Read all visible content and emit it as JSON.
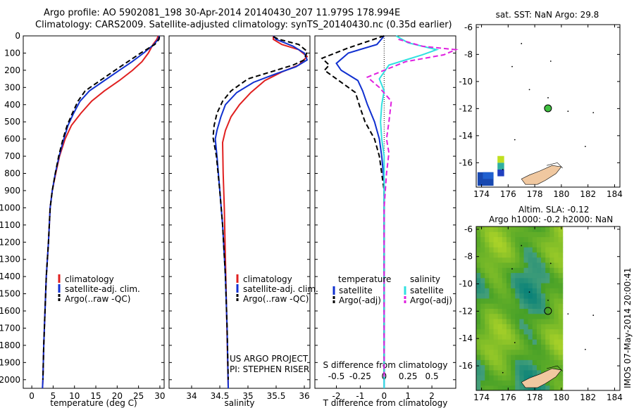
{
  "header": {
    "line1": "Argo profile: AO 5902081_198 30-Apr-2014 20140430_207 11.979S 178.994E",
    "line2": "Climatology: CARS2009. Satellite-adjusted climatology: synTS_20140430.nc (0.35d earlier)"
  },
  "footer_vertical": "IMOS 07-May-2014 20:00:41",
  "colors": {
    "climatology": "#e02020",
    "satellite": "#1030d0",
    "argo": "#000000",
    "sal_satellite": "#30e0e0",
    "sal_argo": "#e020e0",
    "map_land": "#f0c8a0",
    "map_ocean_anom": "#40c040"
  },
  "chart_data": [
    {
      "type": "line",
      "xlabel": "temperature (deg C)",
      "ylabel": "",
      "xticks": [
        0,
        5,
        10,
        15,
        20,
        25,
        30
      ],
      "xlim": [
        -2,
        31
      ],
      "yticks": [
        0,
        100,
        200,
        300,
        400,
        500,
        600,
        700,
        800,
        900,
        1000,
        1100,
        1200,
        1300,
        1400,
        1500,
        1600,
        1700,
        1800,
        1900,
        2000
      ],
      "ylim": [
        2050,
        0
      ],
      "legend": [
        "climatology",
        "satellite-adj. clim.",
        "Argo(..raw -QC)"
      ],
      "series": [
        {
          "name": "climatology",
          "style": "solid",
          "color": "#e02020",
          "points": [
            [
              29.6,
              0
            ],
            [
              29.3,
              20
            ],
            [
              28.4,
              50
            ],
            [
              27.3,
              100
            ],
            [
              25.8,
              150
            ],
            [
              23.6,
              200
            ],
            [
              20.5,
              260
            ],
            [
              17,
              320
            ],
            [
              14,
              380
            ],
            [
              11.5,
              450
            ],
            [
              9.3,
              520
            ],
            [
              7.8,
              600
            ],
            [
              6.5,
              700
            ],
            [
              5.6,
              800
            ],
            [
              4.8,
              900
            ],
            [
              4.3,
              1000
            ],
            [
              3.9,
              1200
            ],
            [
              3.4,
              1400
            ],
            [
              3.1,
              1600
            ],
            [
              2.8,
              1800
            ],
            [
              2.6,
              2000
            ],
            [
              2.5,
              2050
            ]
          ]
        },
        {
          "name": "satellite-adj. clim.",
          "style": "solid",
          "color": "#1030d0",
          "points": [
            [
              29.9,
              0
            ],
            [
              29.6,
              20
            ],
            [
              28.6,
              50
            ],
            [
              26.2,
              100
            ],
            [
              23.5,
              150
            ],
            [
              20.5,
              200
            ],
            [
              17,
              260
            ],
            [
              13.5,
              320
            ],
            [
              11.3,
              380
            ],
            [
              9.8,
              450
            ],
            [
              8.5,
              520
            ],
            [
              7.5,
              600
            ],
            [
              6.4,
              700
            ],
            [
              5.5,
              800
            ],
            [
              4.8,
              900
            ],
            [
              4.3,
              1000
            ],
            [
              3.9,
              1200
            ],
            [
              3.4,
              1400
            ],
            [
              3.1,
              1600
            ],
            [
              2.8,
              1800
            ],
            [
              2.6,
              2000
            ],
            [
              2.5,
              2050
            ]
          ]
        },
        {
          "name": "Argo(..raw -QC)",
          "style": "dashed",
          "color": "#000000",
          "points": [
            [
              29.9,
              5
            ],
            [
              29.8,
              20
            ],
            [
              28.8,
              50
            ],
            [
              25.5,
              100
            ],
            [
              22.5,
              150
            ],
            [
              19.5,
              200
            ],
            [
              16,
              260
            ],
            [
              12.5,
              320
            ],
            [
              10.8,
              380
            ],
            [
              9.5,
              450
            ],
            [
              8.3,
              520
            ],
            [
              7.3,
              600
            ],
            [
              6.3,
              700
            ],
            [
              5.5,
              800
            ],
            [
              4.8,
              900
            ],
            [
              4.3,
              1000
            ],
            [
              3.9,
              1200
            ],
            [
              3.4,
              1400
            ],
            [
              3.1,
              1600
            ],
            [
              2.8,
              1800
            ],
            [
              2.6,
              2000
            ]
          ]
        }
      ]
    },
    {
      "type": "line",
      "xlabel": "salinity",
      "ylabel": "",
      "xticks": [
        34,
        34.5,
        35,
        35.5,
        36
      ],
      "xlim": [
        33.6,
        36.1
      ],
      "ylim": [
        2050,
        0
      ],
      "legend": [
        "climatology",
        "satellite-adj. clim.",
        "Argo(..raw -QC)"
      ],
      "annotations": [
        "US ARGO PROJECT",
        "PI: STEPHEN RISER"
      ],
      "series": [
        {
          "name": "climatology",
          "style": "solid",
          "color": "#e02020",
          "points": [
            [
              35.45,
              0
            ],
            [
              35.45,
              20
            ],
            [
              35.6,
              50
            ],
            [
              35.9,
              80
            ],
            [
              36.05,
              120
            ],
            [
              35.9,
              170
            ],
            [
              35.6,
              210
            ],
            [
              35.3,
              260
            ],
            [
              35.05,
              330
            ],
            [
              34.85,
              400
            ],
            [
              34.7,
              470
            ],
            [
              34.6,
              550
            ],
            [
              34.55,
              620
            ],
            [
              34.56,
              800
            ],
            [
              34.58,
              1000
            ],
            [
              34.6,
              1300
            ],
            [
              34.62,
              1600
            ],
            [
              34.64,
              1900
            ],
            [
              34.65,
              2050
            ]
          ]
        },
        {
          "name": "satellite-adj. clim.",
          "style": "solid",
          "color": "#1030d0",
          "points": [
            [
              35.45,
              0
            ],
            [
              35.5,
              20
            ],
            [
              35.8,
              60
            ],
            [
              36.0,
              100
            ],
            [
              36.05,
              140
            ],
            [
              35.85,
              180
            ],
            [
              35.5,
              220
            ],
            [
              35.1,
              270
            ],
            [
              34.8,
              330
            ],
            [
              34.6,
              400
            ],
            [
              34.52,
              470
            ],
            [
              34.45,
              550
            ],
            [
              34.42,
              600
            ],
            [
              34.45,
              700
            ],
            [
              34.5,
              900
            ],
            [
              34.55,
              1100
            ],
            [
              34.6,
              1400
            ],
            [
              34.63,
              1700
            ],
            [
              34.65,
              2050
            ]
          ]
        },
        {
          "name": "Argo(..raw -QC)",
          "style": "dashed",
          "color": "#000000",
          "points": [
            [
              35.45,
              5
            ],
            [
              35.55,
              20
            ],
            [
              35.9,
              50
            ],
            [
              36.05,
              90
            ],
            [
              36.0,
              140
            ],
            [
              35.8,
              170
            ],
            [
              35.5,
              200
            ],
            [
              35.0,
              250
            ],
            [
              34.7,
              320
            ],
            [
              34.55,
              380
            ],
            [
              34.45,
              450
            ],
            [
              34.4,
              520
            ],
            [
              34.38,
              590
            ],
            [
              34.44,
              700
            ],
            [
              34.5,
              900
            ],
            [
              34.55,
              1100
            ],
            [
              34.6,
              1400
            ],
            [
              34.63,
              1700
            ],
            [
              34.65,
              2000
            ]
          ]
        }
      ]
    },
    {
      "type": "line",
      "xlabel": "T difference from climatology",
      "xlabel_top": "S difference from climatology",
      "xticks_bottom": [
        "-2",
        "-1",
        "0",
        "1",
        "2"
      ],
      "xticks_top": [
        "-0.5",
        "-0.25",
        "0",
        "0.25",
        "0.5"
      ],
      "xlim": [
        -2.9,
        3.0
      ],
      "ylim": [
        2050,
        0
      ],
      "legend_temperature": {
        "title": "temperature",
        "items": [
          "satellite",
          "Argo(-adj)"
        ]
      },
      "legend_salinity": {
        "title": "salinity",
        "items": [
          "satellite",
          "Argo(-adj)"
        ]
      },
      "series": [
        {
          "name": "satellite",
          "group": "temperature",
          "style": "solid",
          "color": "#1030d0",
          "points": [
            [
              0,
              0
            ],
            [
              -0.3,
              50
            ],
            [
              -1.5,
              100
            ],
            [
              -2.0,
              160
            ],
            [
              -1.8,
              200
            ],
            [
              -1.1,
              260
            ],
            [
              -0.9,
              320
            ],
            [
              -0.7,
              400
            ],
            [
              -0.4,
              500
            ],
            [
              -0.2,
              600
            ],
            [
              -0.1,
              700
            ],
            [
              0,
              850
            ],
            [
              0,
              1100
            ],
            [
              0,
              1500
            ],
            [
              0,
              2050
            ]
          ]
        },
        {
          "name": "Argo(-adj)",
          "group": "temperature",
          "style": "dashed",
          "color": "#000000",
          "points": [
            [
              0,
              0
            ],
            [
              -1.5,
              70
            ],
            [
              -2.6,
              130
            ],
            [
              -2.3,
              170
            ],
            [
              -2.5,
              200
            ],
            [
              -1.9,
              260
            ],
            [
              -1.2,
              330
            ],
            [
              -1.0,
              420
            ],
            [
              -0.8,
              500
            ],
            [
              -0.4,
              600
            ],
            [
              -0.2,
              700
            ],
            [
              0,
              900
            ],
            [
              0,
              1200
            ],
            [
              0,
              2000
            ]
          ]
        },
        {
          "name": "satellite",
          "group": "salinity",
          "style": "solid",
          "color": "#30e0e0",
          "points": [
            [
              0.5,
              0
            ],
            [
              1.0,
              40
            ],
            [
              2.2,
              80
            ],
            [
              1.6,
              110
            ],
            [
              0.2,
              170
            ],
            [
              -0.2,
              250
            ],
            [
              0,
              320
            ],
            [
              -0.1,
              400
            ],
            [
              -0.15,
              500
            ],
            [
              -0.1,
              600
            ],
            [
              0,
              700
            ],
            [
              0,
              900
            ],
            [
              0,
              1200
            ],
            [
              0,
              2050
            ]
          ]
        },
        {
          "name": "Argo(-adj)",
          "group": "salinity",
          "style": "dashed",
          "color": "#e020e0",
          "points": [
            [
              0.6,
              20
            ],
            [
              1.6,
              60
            ],
            [
              3.0,
              80
            ],
            [
              2.5,
              110
            ],
            [
              0.9,
              150
            ],
            [
              0,
              200
            ],
            [
              -0.7,
              240
            ],
            [
              -0.2,
              300
            ],
            [
              0.3,
              380
            ],
            [
              0.2,
              500
            ],
            [
              0.1,
              600
            ],
            [
              0.2,
              680
            ],
            [
              0.1,
              800
            ],
            [
              0,
              1000
            ],
            [
              0,
              2000
            ]
          ]
        }
      ]
    },
    {
      "type": "scatter",
      "title": "sat. SST: NaN Argo: 29.8",
      "xticks": [
        174,
        176,
        178,
        180,
        182,
        184
      ],
      "yticks": [
        -6,
        -8,
        -10,
        -12,
        -14,
        -16
      ],
      "xlim": [
        173.6,
        184.4
      ],
      "ylim": [
        -17.8,
        -5.8
      ],
      "argo_position": [
        178.994,
        -11.979
      ]
    },
    {
      "type": "heatmap",
      "title": "Altim. SLA: -0.12",
      "subtitle": "Argo h1000: -0.2 h2000: NaN",
      "xticks": [
        174,
        176,
        178,
        180,
        182,
        184
      ],
      "yticks": [
        -6,
        -8,
        -10,
        -12,
        -14,
        -16
      ],
      "xlim": [
        173.6,
        184.4
      ],
      "ylim": [
        -17.8,
        -5.8
      ],
      "field_xlim": [
        173.6,
        180.1
      ],
      "argo_position": [
        178.994,
        -11.979
      ]
    }
  ]
}
